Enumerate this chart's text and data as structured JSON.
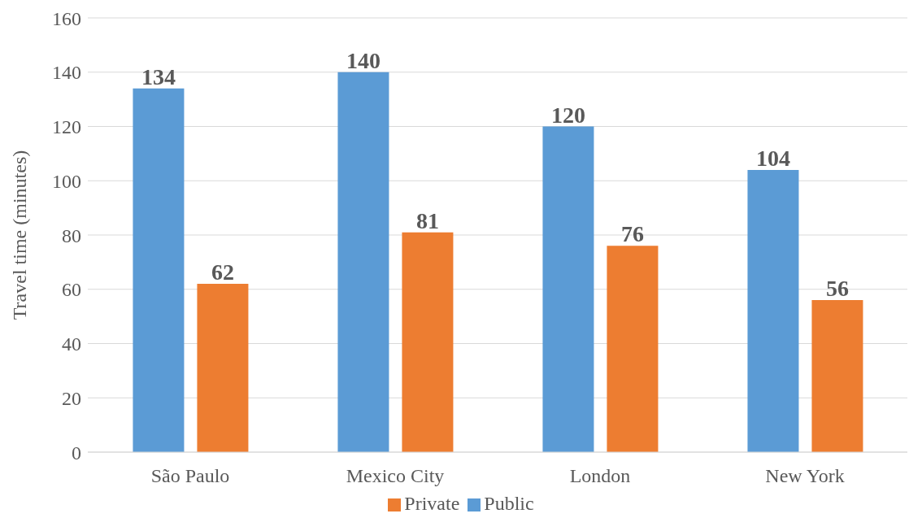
{
  "chart_data": {
    "type": "bar",
    "ylabel": "Travel time (minutes)",
    "categories": [
      "São Paulo",
      "Mexico City",
      "London",
      "New York"
    ],
    "series": [
      {
        "name": "Public",
        "color": "#5b9bd5",
        "values": [
          134,
          140,
          120,
          104
        ]
      },
      {
        "name": "Private",
        "color": "#ed7d31",
        "values": [
          62,
          81,
          76,
          56
        ]
      }
    ],
    "ylim": [
      0,
      160
    ],
    "yticks": [
      0,
      20,
      40,
      60,
      80,
      100,
      120,
      140,
      160
    ],
    "grid": "y",
    "legend": "bottom",
    "data_labels": true
  }
}
